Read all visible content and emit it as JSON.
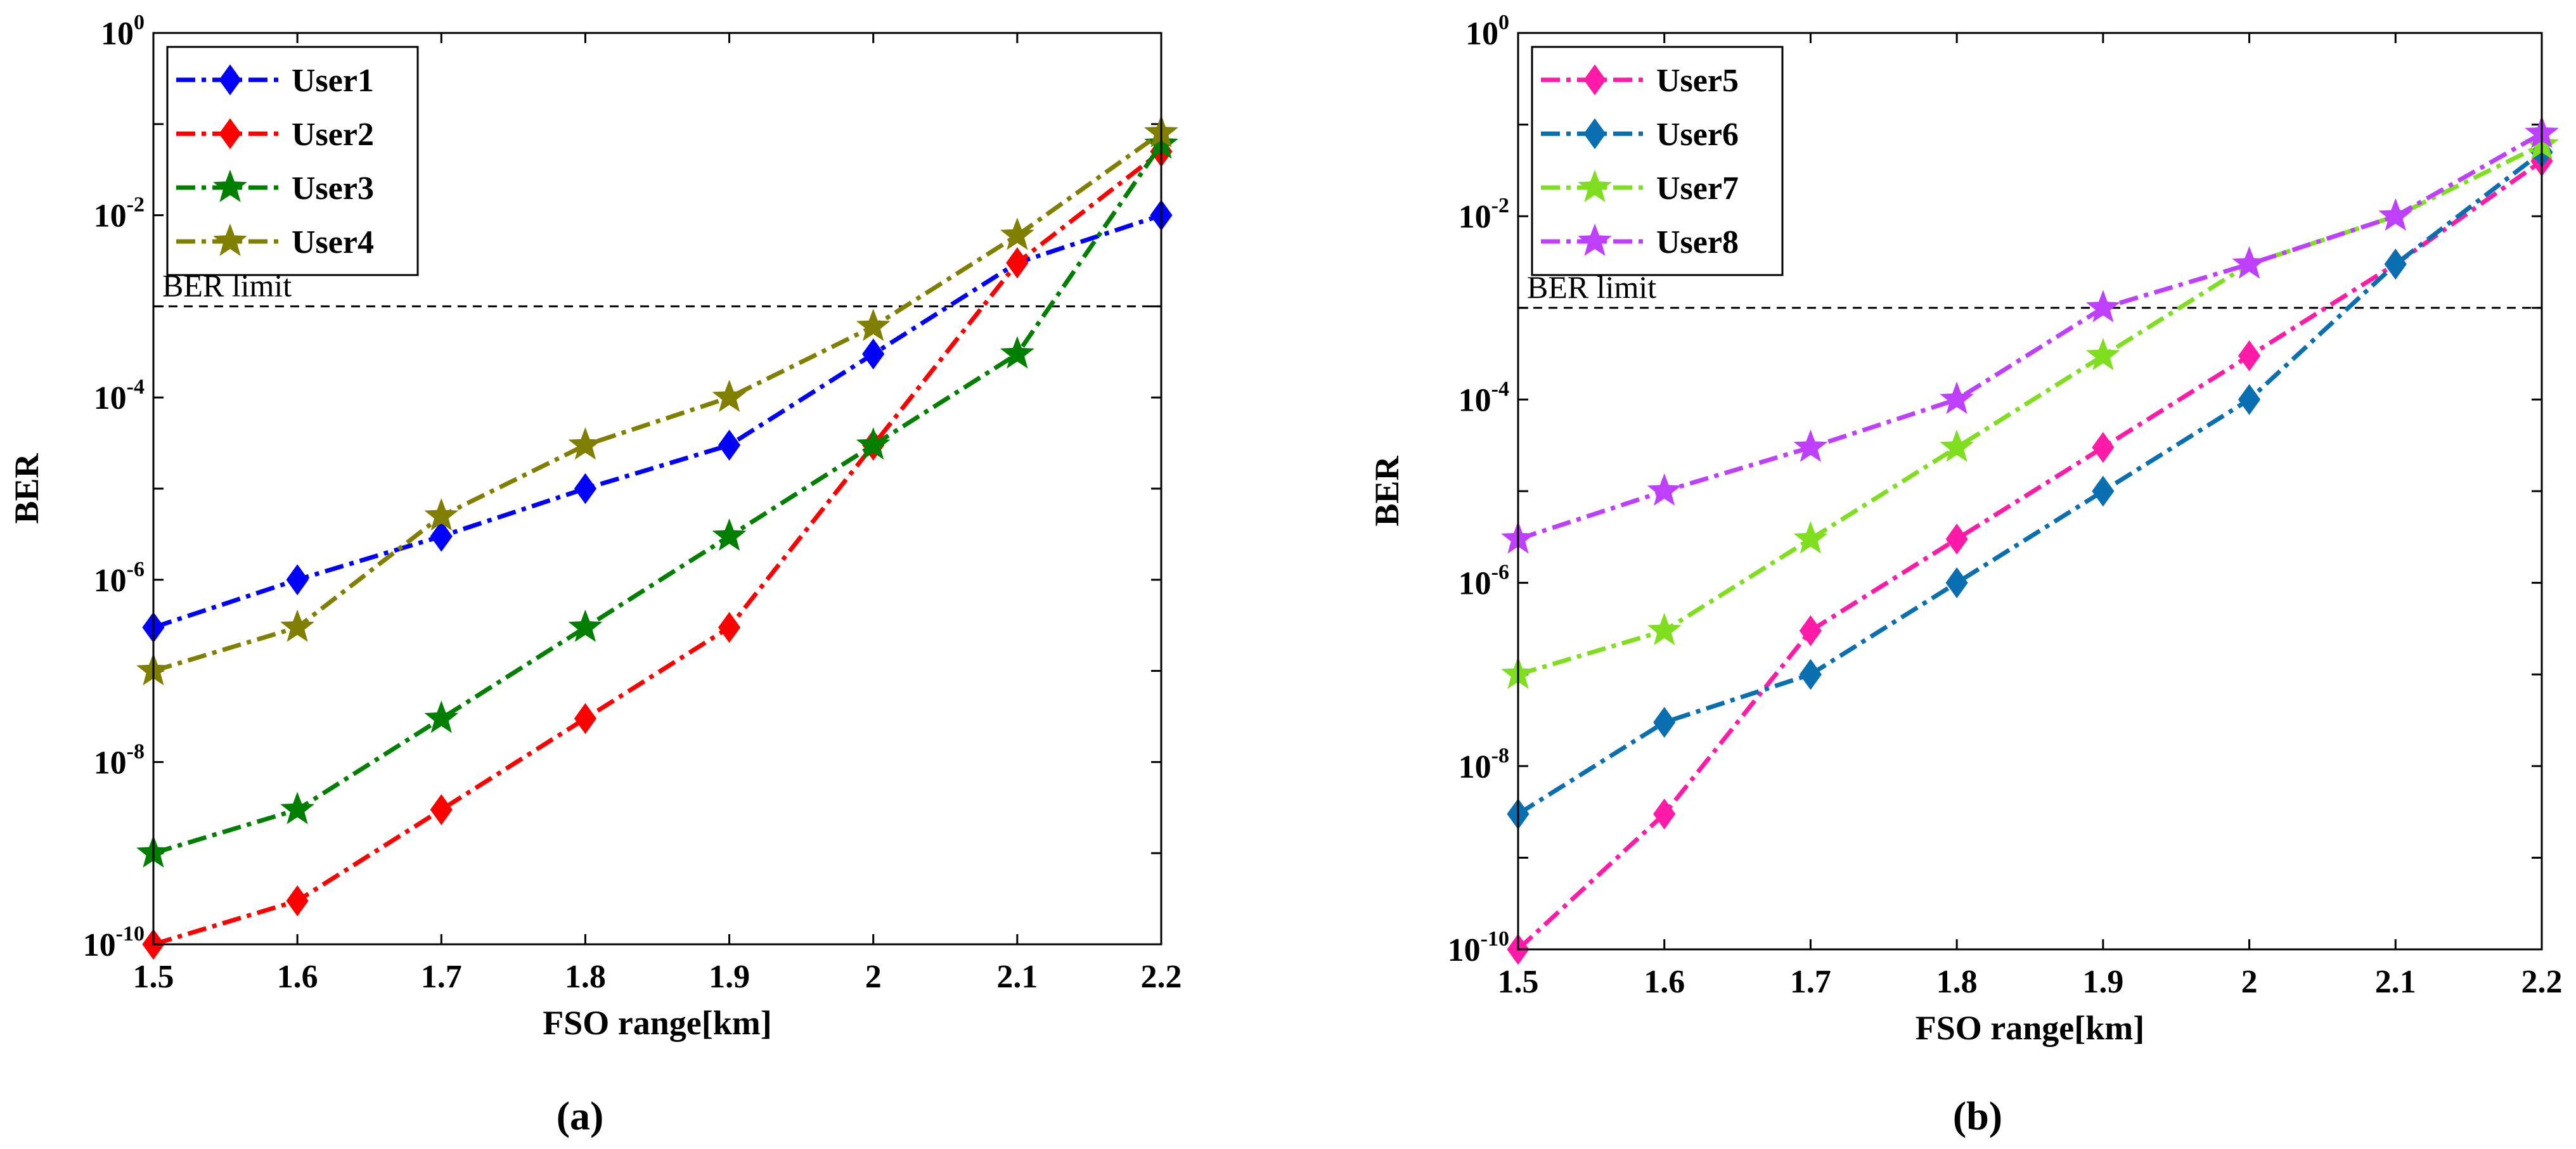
{
  "chart_data": [
    {
      "type": "line",
      "panel_label": "(a)",
      "xlabel": "FSO range[km]",
      "ylabel": "BER",
      "yscale": "log",
      "xlim": [
        1.5,
        2.2
      ],
      "ylim": [
        1e-10,
        1
      ],
      "x_ticks": [
        "1.5",
        "1.6",
        "1.7",
        "1.8",
        "1.9",
        "2",
        "2.1",
        "2.2"
      ],
      "y_ticks": [
        {
          "base": "10",
          "exp": "-10"
        },
        {
          "base": "10",
          "exp": "-8"
        },
        {
          "base": "10",
          "exp": "-6"
        },
        {
          "base": "10",
          "exp": "-4"
        },
        {
          "base": "10",
          "exp": "-2"
        },
        {
          "base": "10",
          "exp": "0"
        }
      ],
      "reference_line": {
        "label": "BER limit",
        "value": 0.001
      },
      "legend_position": "top-left",
      "x": [
        1.5,
        1.6,
        1.7,
        1.8,
        1.9,
        2.0,
        2.1,
        2.2
      ],
      "series": [
        {
          "name": "User1",
          "color": "#0000ff",
          "marker": "diamond",
          "values": [
            3e-07,
            1e-06,
            3e-06,
            1e-05,
            3e-05,
            0.0003,
            0.003,
            0.01
          ]
        },
        {
          "name": "User2",
          "color": "#ff0000",
          "marker": "diamond",
          "values": [
            1e-10,
            3e-10,
            3e-09,
            3e-08,
            3e-07,
            3e-05,
            0.003,
            0.05
          ]
        },
        {
          "name": "User3",
          "color": "#007f00",
          "marker": "star",
          "values": [
            1e-09,
            3e-09,
            3e-08,
            3e-07,
            3e-06,
            3e-05,
            0.0003,
            0.06
          ]
        },
        {
          "name": "User4",
          "color": "#807f00",
          "marker": "star",
          "values": [
            1e-07,
            3e-07,
            5e-06,
            3e-05,
            0.0001,
            0.0006,
            0.006,
            0.08
          ]
        }
      ]
    },
    {
      "type": "line",
      "panel_label": "(b)",
      "xlabel": "FSO range[km]",
      "ylabel": "BER",
      "yscale": "log",
      "xlim": [
        1.5,
        2.2
      ],
      "ylim": [
        1e-10,
        1
      ],
      "x_ticks": [
        "1.5",
        "1.6",
        "1.7",
        "1.8",
        "1.9",
        "2",
        "2.1",
        "2.2"
      ],
      "y_ticks": [
        {
          "base": "10",
          "exp": "-10"
        },
        {
          "base": "10",
          "exp": "-8"
        },
        {
          "base": "10",
          "exp": "-6"
        },
        {
          "base": "10",
          "exp": "-4"
        },
        {
          "base": "10",
          "exp": "-2"
        },
        {
          "base": "10",
          "exp": "0"
        }
      ],
      "reference_line": {
        "label": "BER limit",
        "value": 0.001
      },
      "legend_position": "top-left",
      "x": [
        1.5,
        1.6,
        1.7,
        1.8,
        1.9,
        2.0,
        2.1,
        2.2
      ],
      "series": [
        {
          "name": "User5",
          "color": "#ff1aa8",
          "marker": "diamond",
          "values": [
            1e-10,
            3e-09,
            3e-07,
            3e-06,
            3e-05,
            0.0003,
            0.003,
            0.04
          ]
        },
        {
          "name": "User6",
          "color": "#0a6fb0",
          "marker": "diamond",
          "values": [
            3e-09,
            3e-08,
            1e-07,
            1e-06,
            1e-05,
            0.0001,
            0.003,
            0.05
          ]
        },
        {
          "name": "User7",
          "color": "#7fdf1f",
          "marker": "star",
          "values": [
            1e-07,
            3e-07,
            3e-06,
            3e-05,
            0.0003,
            0.003,
            0.01,
            0.06
          ]
        },
        {
          "name": "User8",
          "color": "#bf3fff",
          "marker": "star",
          "values": [
            3e-06,
            1e-05,
            3e-05,
            0.0001,
            0.001,
            0.003,
            0.01,
            0.08
          ]
        }
      ]
    }
  ]
}
